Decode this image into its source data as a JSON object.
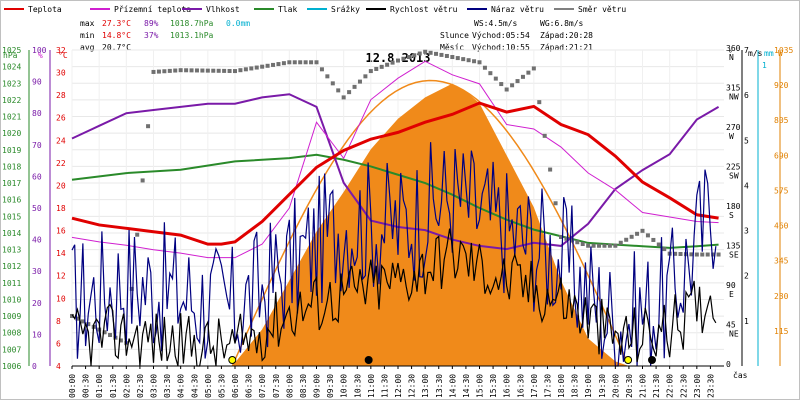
{
  "chart_data": {
    "type": "line",
    "title": "12.8.2013",
    "legend": [
      {
        "name": "Teplota",
        "color": "#e00000"
      },
      {
        "name": "Přízemní teplota",
        "color": "#d020d0"
      },
      {
        "name": "Vlhkost",
        "color": "#7a1aa8"
      },
      {
        "name": "Tlak",
        "color": "#2a8a2a"
      },
      {
        "name": "Srážky",
        "color": "#00b0d0"
      },
      {
        "name": "Rychlost větru",
        "color": "#000000"
      },
      {
        "name": "Náraz větru",
        "color": "#000080"
      },
      {
        "name": "Směr větru",
        "color": "#808080"
      }
    ],
    "stats": {
      "max_label": "max",
      "min_label": "min",
      "avg_label": "avg",
      "max_temp": "27.3°C",
      "max_hum": "89%",
      "max_press": "1018.7hPa",
      "max_rain": "0.0mm",
      "min_temp": "14.8°C",
      "min_hum": "37%",
      "min_press": "1013.1hPa",
      "avg_temp": "20.7°C",
      "ws": "WS:4.5m/s",
      "wg": "WG:6.8m/s",
      "sun_label": "Slunce",
      "sun_rise": "Východ:05:54",
      "sun_set": "Západ:20:28",
      "moon_label": "Měsíc",
      "moon_rise": "Východ:10:55",
      "moon_set": "Západ:21:21"
    },
    "axes": {
      "hpa_label": "hPa",
      "pct_label": "%",
      "c_label": "°C",
      "deg_label": "°",
      "ms_label": "m/s",
      "mm_label": "mm",
      "w_label": "W",
      "time_label": "čas",
      "hpa_ticks": [
        "1025",
        "1024",
        "1023",
        "1022",
        "1021",
        "1020",
        "1019",
        "1018",
        "1017",
        "1016",
        "1015",
        "1014",
        "1013",
        "1012",
        "1011",
        "1010",
        "1009",
        "1008",
        "1007",
        "1006"
      ],
      "pct_ticks": [
        "100",
        "90",
        "80",
        "70",
        "60",
        "50",
        "40",
        "30",
        "20",
        "10",
        "0"
      ],
      "c_ticks": [
        "32",
        "30",
        "28",
        "26",
        "24",
        "22",
        "20",
        "18",
        "16",
        "14",
        "12",
        "10",
        "8",
        "6",
        "4"
      ],
      "dir_ticks": [
        {
          "v": "360",
          "l": "N"
        },
        {
          "v": "315",
          "l": "NW"
        },
        {
          "v": "270",
          "l": "W"
        },
        {
          "v": "225",
          "l": "SW"
        },
        {
          "v": "180",
          "l": "S"
        },
        {
          "v": "135",
          "l": "SE"
        },
        {
          "v": "90",
          "l": "E"
        },
        {
          "v": "45",
          "l": "NE"
        },
        {
          "v": "0",
          "l": ""
        }
      ],
      "ms_ticks": [
        "7",
        "6",
        "5",
        "4",
        "3",
        "2",
        "1"
      ],
      "mm_ticks": [
        "1"
      ],
      "w_ticks": [
        "1035",
        "920",
        "805",
        "690",
        "575",
        "460",
        "345",
        "230",
        "115"
      ],
      "time_ticks": [
        "00:00",
        "00:30",
        "01:00",
        "01:30",
        "02:00",
        "02:30",
        "03:00",
        "03:30",
        "04:00",
        "04:30",
        "05:00",
        "05:30",
        "06:00",
        "06:30",
        "07:00",
        "07:30",
        "08:00",
        "08:30",
        "09:00",
        "09:30",
        "10:00",
        "10:30",
        "11:00",
        "11:30",
        "12:00",
        "12:30",
        "13:00",
        "13:30",
        "14:00",
        "14:30",
        "15:00",
        "15:30",
        "16:00",
        "16:30",
        "17:00",
        "17:30",
        "18:00",
        "18:30",
        "19:00",
        "19:30",
        "20:00",
        "20:30",
        "21:00",
        "21:30",
        "22:00",
        "22:30",
        "23:00",
        "23:30"
      ]
    },
    "series": {
      "temperature": {
        "x": [
          0,
          1,
          2,
          3,
          4,
          5,
          5.5,
          6,
          7,
          8,
          9,
          10,
          11,
          12,
          13,
          14,
          15,
          16,
          17,
          18,
          19,
          20,
          21,
          22,
          23,
          23.8
        ],
        "y": [
          17.1,
          16.5,
          16.2,
          15.9,
          15.6,
          14.8,
          14.8,
          15.0,
          16.8,
          19.2,
          21.6,
          23.1,
          24.1,
          24.7,
          25.6,
          26.3,
          27.3,
          26.5,
          27.0,
          25.4,
          24.5,
          22.6,
          20.3,
          18.9,
          17.4,
          17.1
        ]
      },
      "ground_temp": {
        "x": [
          0,
          1,
          2,
          3,
          4,
          5,
          6,
          7,
          8,
          9,
          10,
          11,
          12,
          13,
          14,
          15,
          16,
          17,
          18,
          19,
          20,
          21,
          22,
          23,
          23.8
        ],
        "y": [
          15.4,
          15.0,
          14.7,
          14.3,
          14.0,
          13.6,
          13.6,
          14.8,
          18.0,
          25.6,
          22.4,
          27.6,
          29.5,
          31.0,
          29.8,
          29.0,
          25.4,
          25.0,
          23.4,
          21.1,
          19.6,
          17.6,
          17.2,
          16.8,
          16.7
        ]
      },
      "humidity": {
        "x": [
          0,
          1,
          2,
          3,
          4,
          5,
          6,
          7,
          8,
          9,
          10,
          11,
          12,
          13,
          14,
          15,
          16,
          17,
          18,
          19,
          20,
          21,
          22,
          23,
          23.8
        ],
        "y": [
          72,
          76,
          80,
          81,
          82,
          83,
          83,
          85,
          86,
          82,
          58,
          46,
          44,
          43,
          40,
          38,
          37,
          39,
          38,
          45,
          56,
          62,
          67,
          78,
          82
        ]
      },
      "pressure": {
        "x": [
          0,
          2,
          4,
          6,
          8,
          9,
          10,
          11,
          12,
          13,
          14,
          15,
          16,
          17,
          18,
          19,
          20,
          21,
          22,
          23,
          23.8
        ],
        "y": [
          1017.2,
          1017.6,
          1017.8,
          1018.3,
          1018.5,
          1018.7,
          1018.4,
          1018.0,
          1017.5,
          1017.0,
          1016.3,
          1015.5,
          1014.8,
          1014.2,
          1013.8,
          1013.4,
          1013.3,
          1013.2,
          1013.1,
          1013.2,
          1013.3
        ]
      },
      "solar": {
        "x": [
          5.9,
          7,
          8,
          9,
          10,
          11,
          12,
          13,
          14,
          14.5,
          15,
          16,
          17,
          18,
          19,
          20,
          20.5
        ],
        "y": [
          0,
          120,
          280,
          440,
          570,
          710,
          810,
          880,
          925,
          900,
          860,
          690,
          520,
          280,
          90,
          15,
          0
        ]
      },
      "wind_speed_avg": {
        "x": [
          0,
          2,
          4,
          6,
          8,
          10,
          12,
          14,
          16,
          18,
          20,
          22,
          23.8
        ],
        "y": [
          0.6,
          0.7,
          0.5,
          0.4,
          1.2,
          1.6,
          1.9,
          2.5,
          1.9,
          1.5,
          0.6,
          0.8,
          1.7
        ]
      },
      "wind_gust_avg": {
        "x": [
          0,
          2,
          4,
          6,
          8,
          10,
          12,
          14,
          16,
          18,
          20,
          22,
          23.8
        ],
        "y": [
          1.4,
          1.9,
          1.6,
          1.2,
          2.2,
          3.2,
          3.1,
          3.8,
          3.0,
          2.4,
          0.9,
          1.5,
          3.8
        ]
      },
      "wind_dir_avg": {
        "x": [
          0,
          2,
          3,
          4,
          6,
          8,
          9,
          10,
          11,
          12,
          13,
          14,
          15,
          16,
          17,
          18,
          19,
          20,
          21,
          22,
          23,
          23.8
        ],
        "y": [
          57,
          26,
          335,
          337,
          336,
          346,
          346,
          306,
          336,
          348,
          358,
          352,
          346,
          315,
          339,
          147,
          137,
          137,
          154,
          128,
          127,
          127
        ]
      }
    }
  }
}
